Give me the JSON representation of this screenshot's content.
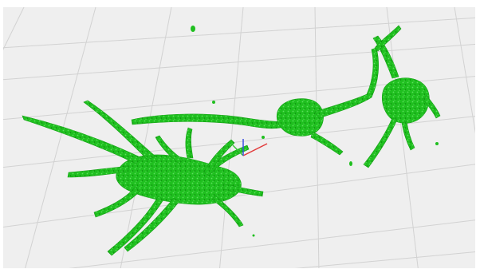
{
  "viewer": {
    "background_color": "#efefef",
    "grid_color": "#cfcfcf",
    "cell_color": "#1fbf1f",
    "cell_highlight_color": "#5de05d",
    "cell_shadow_color": "#0c8a0c",
    "axes": {
      "x_color": "#e23a3a",
      "y_color": "#3ac23a",
      "z_color": "#3a4fe2"
    }
  }
}
